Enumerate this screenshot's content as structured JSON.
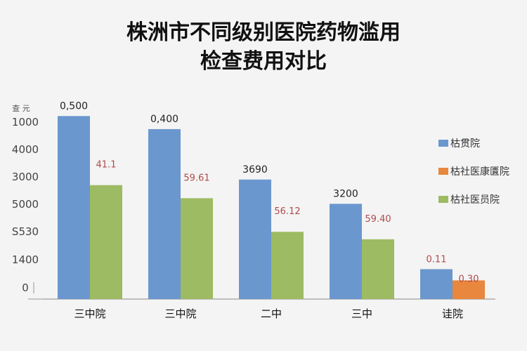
{
  "colors": {
    "blue": "#6b97cf",
    "green": "#9dbb62",
    "orange": "#e8873d",
    "background": "#f4f4f4"
  },
  "chart_data": {
    "type": "bar",
    "title_lines": [
      "株洲市不同级别医院药物滥用",
      "检查费用对比"
    ],
    "ylabel": "查 元",
    "yticks": [
      "1000",
      "4000",
      "3000",
      "5000",
      "S530",
      "1400",
      "0"
    ],
    "categories": [
      "三中院",
      "三中院",
      "二中",
      "三中",
      "诖院"
    ],
    "legend_position": "right",
    "grid": false,
    "series": [
      {
        "name": "枯贯院",
        "color": "#6b97cf",
        "values": [
          0.5,
          0.4,
          3690,
          3200,
          0.11
        ],
        "labels": [
          "0,500",
          "0,400",
          "3690",
          "3200",
          "0.11"
        ]
      },
      {
        "name": "枯社医康匱院",
        "color": "#e8873d",
        "values": [
          null,
          null,
          null,
          null,
          0.3
        ],
        "labels": [
          null,
          null,
          null,
          null,
          "0.30"
        ]
      },
      {
        "name": "枯社医员院",
        "color": "#9dbb62",
        "values": [
          41.1,
          59.61,
          56.12,
          59.4,
          null
        ],
        "labels": [
          "41.1",
          "59.61",
          "56.12",
          "59.40",
          null
        ]
      }
    ],
    "display_heights": {
      "note": "relative visual bar heights as shown (fraction of axis max)",
      "blue": [
        0.98,
        0.91,
        0.64,
        0.51,
        0.16
      ],
      "green": [
        0.61,
        0.54,
        0.36,
        0.32,
        null
      ],
      "orange": [
        null,
        null,
        null,
        null,
        0.1
      ]
    }
  }
}
